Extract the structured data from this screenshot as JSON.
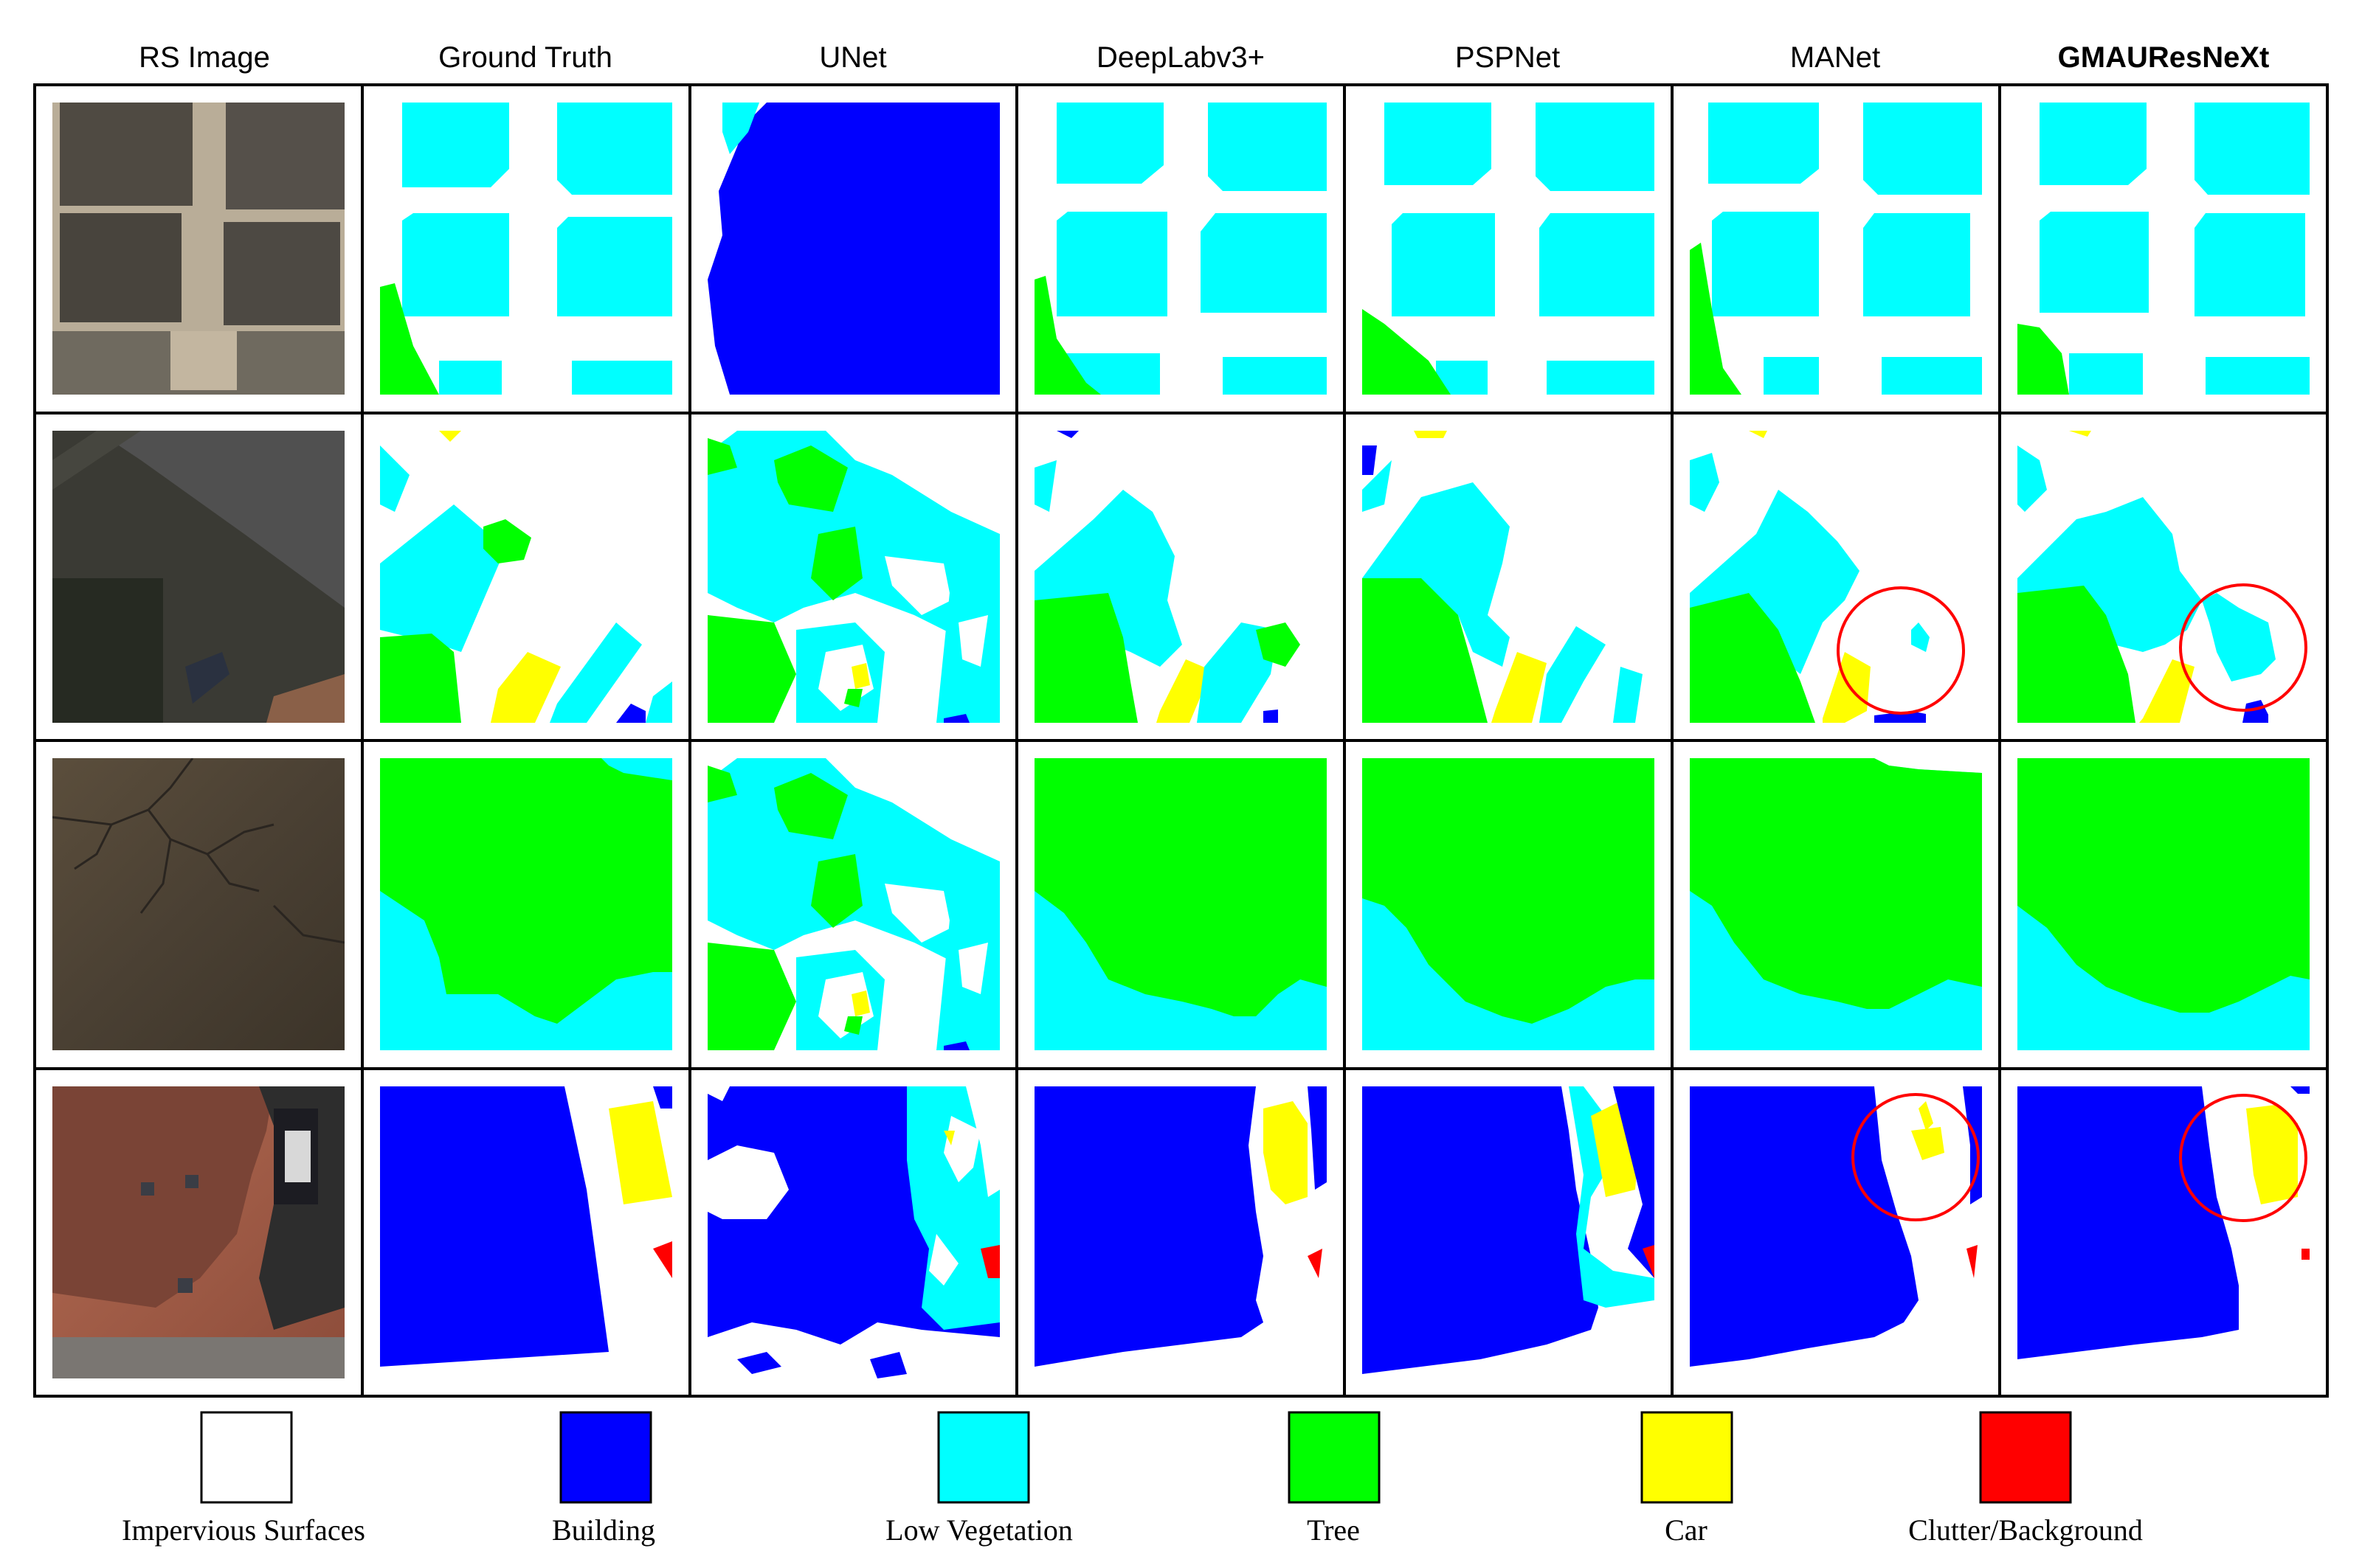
{
  "headers": {
    "rs_image": "RS Image",
    "ground_truth": "Ground Truth",
    "unet": "UNet",
    "deeplab": "DeepLabv3+",
    "pspnet": "PSPNet",
    "manet": "MANet",
    "gmau": "GMAUResNeXt"
  },
  "legend": {
    "impervious": "Impervious Surfaces",
    "building": "Building",
    "low_vegetation": "Low Vegetation",
    "tree": "Tree",
    "car": "Car",
    "clutter": "Clutter/Background"
  },
  "colors": {
    "impervious": "#ffffff",
    "building": "#0000ff",
    "low_vegetation": "#00ffff",
    "tree": "#00ff00",
    "car": "#ffff00",
    "clutter": "#ff0000"
  }
}
